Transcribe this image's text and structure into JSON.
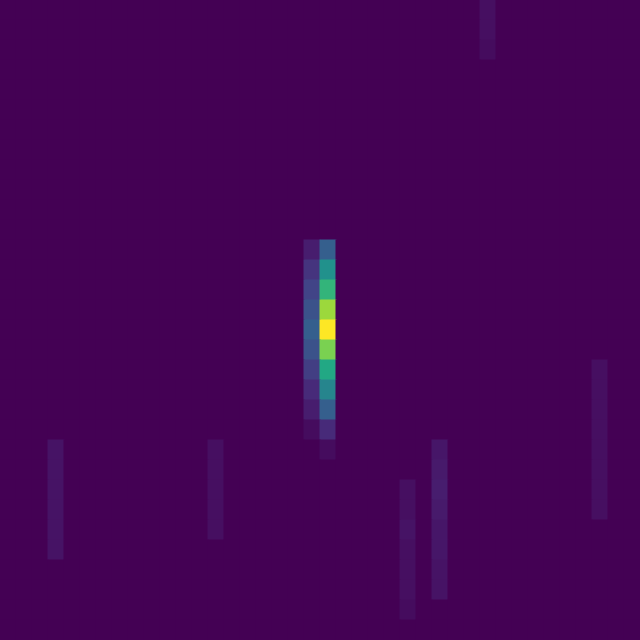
{
  "chart_data": {
    "type": "heatmap",
    "color": "viridis",
    "tick_labels": false,
    "zlim": [
      0,
      1
    ],
    "cells": [
      [
        0,
        0,
        0,
        0,
        0,
        0,
        0,
        0,
        0,
        0,
        0,
        0,
        0,
        0,
        0,
        0,
        0,
        0,
        0,
        0,
        0,
        0,
        0,
        0,
        0,
        0,
        0,
        0,
        0,
        0,
        0.04,
        0,
        0,
        0,
        0,
        0,
        0,
        0,
        0,
        0
      ],
      [
        0,
        0,
        0,
        0,
        0,
        0,
        0,
        0,
        0,
        0,
        0,
        0,
        0,
        0,
        0,
        0,
        0,
        0,
        0,
        0,
        0,
        0,
        0,
        0,
        0,
        0,
        0,
        0,
        0,
        0,
        0.04,
        0,
        0,
        0,
        0,
        0,
        0,
        0,
        0,
        0
      ],
      [
        0,
        0,
        0,
        0,
        0,
        0,
        0,
        0,
        0,
        0,
        0,
        0,
        0,
        0,
        0,
        0,
        0,
        0,
        0,
        0,
        0,
        0,
        0,
        0,
        0,
        0,
        0,
        0,
        0,
        0,
        0.03,
        0,
        0,
        0,
        0,
        0,
        0,
        0,
        0,
        0
      ],
      [
        0,
        0,
        0,
        0,
        0,
        0,
        0,
        0,
        0,
        0,
        0,
        0,
        0,
        0,
        0,
        0,
        0,
        0,
        0,
        0,
        0,
        0,
        0,
        0,
        0,
        0,
        0,
        0,
        0,
        0,
        0,
        0,
        0,
        0,
        0,
        0,
        0,
        0,
        0,
        0
      ],
      [
        0,
        0,
        0,
        0,
        0,
        0,
        0,
        0,
        0,
        0,
        0,
        0,
        0,
        0,
        0,
        0,
        0,
        0,
        0,
        0,
        0,
        0,
        0,
        0,
        0,
        0,
        0,
        0,
        0,
        0,
        0,
        0,
        0,
        0,
        0,
        0,
        0,
        0,
        0,
        0
      ],
      [
        0,
        0,
        0,
        0,
        0,
        0,
        0,
        0,
        0,
        0,
        0,
        0,
        0,
        0,
        0,
        0,
        0,
        0,
        0,
        0,
        0,
        0,
        0,
        0,
        0,
        0,
        0,
        0,
        0,
        0,
        0,
        0,
        0,
        0,
        0,
        0,
        0,
        0,
        0,
        0
      ],
      [
        0,
        0,
        0,
        0,
        0,
        0,
        0,
        0,
        0,
        0,
        0,
        0,
        0,
        0,
        0,
        0,
        0,
        0,
        0,
        0,
        0,
        0,
        0,
        0,
        0,
        0,
        0,
        0,
        0,
        0,
        0,
        0,
        0,
        0,
        0,
        0,
        0,
        0,
        0,
        0
      ],
      [
        0,
        0,
        0,
        0,
        0,
        0,
        0,
        0,
        0,
        0,
        0,
        0,
        0,
        0,
        0,
        0,
        0,
        0,
        0,
        0,
        0,
        0,
        0,
        0,
        0,
        0,
        0,
        0,
        0,
        0,
        0,
        0,
        0,
        0,
        0,
        0,
        0,
        0,
        0,
        0
      ],
      [
        0,
        0,
        0,
        0,
        0,
        0,
        0,
        0,
        0,
        0,
        0,
        0,
        0,
        0,
        0,
        0,
        0,
        0,
        0,
        0,
        0,
        0,
        0,
        0,
        0,
        0,
        0,
        0,
        0,
        0,
        0,
        0,
        0,
        0,
        0,
        0,
        0,
        0,
        0,
        0
      ],
      [
        0,
        0,
        0,
        0,
        0,
        0,
        0,
        0,
        0,
        0,
        0,
        0,
        0,
        0,
        0,
        0,
        0,
        0,
        0,
        0,
        0,
        0,
        0,
        0,
        0,
        0,
        0,
        0,
        0,
        0,
        0,
        0,
        0,
        0,
        0,
        0,
        0,
        0,
        0,
        0
      ],
      [
        0,
        0,
        0,
        0,
        0,
        0,
        0,
        0,
        0,
        0,
        0,
        0,
        0,
        0,
        0,
        0,
        0,
        0,
        0,
        0,
        0,
        0,
        0,
        0,
        0,
        0,
        0,
        0,
        0,
        0,
        0,
        0,
        0,
        0,
        0,
        0,
        0,
        0,
        0,
        0
      ],
      [
        0,
        0,
        0,
        0,
        0,
        0,
        0,
        0,
        0,
        0,
        0,
        0,
        0,
        0,
        0,
        0,
        0,
        0,
        0,
        0,
        0,
        0,
        0,
        0,
        0,
        0,
        0,
        0,
        0,
        0,
        0,
        0,
        0,
        0,
        0,
        0,
        0,
        0,
        0,
        0
      ],
      [
        0,
        0,
        0,
        0,
        0,
        0,
        0,
        0,
        0,
        0,
        0,
        0,
        0,
        0,
        0,
        0,
        0,
        0,
        0,
        0.08,
        0.3,
        0,
        0,
        0,
        0,
        0,
        0,
        0,
        0,
        0,
        0,
        0,
        0,
        0,
        0,
        0,
        0,
        0,
        0,
        0
      ],
      [
        0,
        0,
        0,
        0,
        0,
        0,
        0,
        0,
        0,
        0,
        0,
        0,
        0,
        0,
        0,
        0,
        0,
        0,
        0,
        0.15,
        0.5,
        0,
        0,
        0,
        0,
        0,
        0,
        0,
        0,
        0,
        0,
        0,
        0,
        0,
        0,
        0,
        0,
        0,
        0,
        0
      ],
      [
        0,
        0,
        0,
        0,
        0,
        0,
        0,
        0,
        0,
        0,
        0,
        0,
        0,
        0,
        0,
        0,
        0,
        0,
        0,
        0.2,
        0.65,
        0,
        0,
        0,
        0,
        0,
        0,
        0,
        0,
        0,
        0,
        0,
        0,
        0,
        0,
        0,
        0,
        0,
        0,
        0
      ],
      [
        0,
        0,
        0,
        0,
        0,
        0,
        0,
        0,
        0,
        0,
        0,
        0,
        0,
        0,
        0,
        0,
        0,
        0,
        0,
        0.25,
        0.85,
        0,
        0,
        0,
        0,
        0,
        0,
        0,
        0,
        0,
        0,
        0,
        0,
        0,
        0,
        0,
        0,
        0,
        0,
        0
      ],
      [
        0,
        0,
        0,
        0,
        0,
        0,
        0,
        0,
        0,
        0,
        0,
        0,
        0,
        0,
        0,
        0,
        0,
        0,
        0,
        0.3,
        1.0,
        0,
        0,
        0,
        0,
        0,
        0,
        0,
        0,
        0,
        0,
        0,
        0,
        0,
        0,
        0,
        0,
        0,
        0,
        0
      ],
      [
        0,
        0,
        0,
        0,
        0,
        0,
        0,
        0,
        0,
        0,
        0,
        0,
        0,
        0,
        0,
        0,
        0,
        0,
        0,
        0.25,
        0.8,
        0,
        0,
        0,
        0,
        0,
        0,
        0,
        0,
        0,
        0,
        0,
        0,
        0,
        0,
        0,
        0,
        0,
        0,
        0
      ],
      [
        0,
        0,
        0,
        0,
        0,
        0,
        0,
        0,
        0,
        0,
        0,
        0,
        0,
        0,
        0,
        0,
        0,
        0,
        0,
        0.18,
        0.6,
        0,
        0,
        0,
        0,
        0,
        0,
        0,
        0,
        0,
        0,
        0,
        0,
        0,
        0,
        0,
        0,
        0.04,
        0,
        0
      ],
      [
        0,
        0,
        0,
        0,
        0,
        0,
        0,
        0,
        0,
        0,
        0,
        0,
        0,
        0,
        0,
        0,
        0,
        0,
        0,
        0.12,
        0.45,
        0,
        0,
        0,
        0,
        0,
        0,
        0,
        0,
        0,
        0,
        0,
        0,
        0,
        0,
        0,
        0,
        0.04,
        0,
        0
      ],
      [
        0,
        0,
        0,
        0,
        0,
        0,
        0,
        0,
        0,
        0,
        0,
        0,
        0,
        0,
        0,
        0,
        0,
        0,
        0,
        0.08,
        0.3,
        0,
        0,
        0,
        0,
        0,
        0,
        0,
        0,
        0,
        0,
        0,
        0,
        0,
        0,
        0,
        0,
        0.04,
        0,
        0
      ],
      [
        0,
        0,
        0,
        0,
        0,
        0,
        0,
        0,
        0,
        0,
        0,
        0,
        0,
        0,
        0,
        0,
        0,
        0,
        0,
        0.03,
        0.12,
        0,
        0,
        0,
        0,
        0,
        0,
        0,
        0,
        0,
        0,
        0,
        0,
        0,
        0,
        0,
        0,
        0.04,
        0,
        0
      ],
      [
        0,
        0,
        0,
        0.05,
        0,
        0,
        0,
        0,
        0,
        0,
        0,
        0,
        0,
        0.04,
        0,
        0,
        0,
        0,
        0,
        0,
        0.03,
        0,
        0,
        0,
        0,
        0,
        0,
        0.06,
        0,
        0,
        0,
        0,
        0,
        0,
        0,
        0,
        0,
        0.04,
        0,
        0
      ],
      [
        0,
        0,
        0,
        0.05,
        0,
        0,
        0,
        0,
        0,
        0,
        0,
        0,
        0,
        0.04,
        0,
        0,
        0,
        0,
        0,
        0,
        0,
        0,
        0,
        0,
        0,
        0,
        0,
        0.07,
        0,
        0,
        0,
        0,
        0,
        0,
        0,
        0,
        0,
        0.04,
        0,
        0
      ],
      [
        0,
        0,
        0,
        0.05,
        0,
        0,
        0,
        0,
        0,
        0,
        0,
        0,
        0,
        0.04,
        0,
        0,
        0,
        0,
        0,
        0,
        0,
        0,
        0,
        0,
        0,
        0.04,
        0,
        0.08,
        0,
        0,
        0,
        0,
        0,
        0,
        0,
        0,
        0,
        0.04,
        0,
        0
      ],
      [
        0,
        0,
        0,
        0.05,
        0,
        0,
        0,
        0,
        0,
        0,
        0,
        0,
        0,
        0.04,
        0,
        0,
        0,
        0,
        0,
        0,
        0,
        0,
        0,
        0,
        0,
        0.04,
        0,
        0.07,
        0,
        0,
        0,
        0,
        0,
        0,
        0,
        0,
        0,
        0.04,
        0,
        0
      ],
      [
        0,
        0,
        0,
        0.05,
        0,
        0,
        0,
        0,
        0,
        0,
        0,
        0,
        0,
        0.04,
        0,
        0,
        0,
        0,
        0,
        0,
        0,
        0,
        0,
        0,
        0,
        0.05,
        0,
        0.06,
        0,
        0,
        0,
        0,
        0,
        0,
        0,
        0,
        0,
        0,
        0,
        0
      ],
      [
        0,
        0,
        0,
        0.05,
        0,
        0,
        0,
        0,
        0,
        0,
        0,
        0,
        0,
        0,
        0,
        0,
        0,
        0,
        0,
        0,
        0,
        0,
        0,
        0,
        0,
        0.04,
        0,
        0.06,
        0,
        0,
        0,
        0,
        0,
        0,
        0,
        0,
        0,
        0,
        0,
        0
      ],
      [
        0,
        0,
        0,
        0,
        0,
        0,
        0,
        0,
        0,
        0,
        0,
        0,
        0,
        0,
        0,
        0,
        0,
        0,
        0,
        0,
        0,
        0,
        0,
        0,
        0,
        0.04,
        0,
        0.05,
        0,
        0,
        0,
        0,
        0,
        0,
        0,
        0,
        0,
        0,
        0,
        0
      ],
      [
        0,
        0,
        0,
        0,
        0,
        0,
        0,
        0,
        0,
        0,
        0,
        0,
        0,
        0,
        0,
        0,
        0,
        0,
        0,
        0,
        0,
        0,
        0,
        0,
        0,
        0.04,
        0,
        0.05,
        0,
        0,
        0,
        0,
        0,
        0,
        0,
        0,
        0,
        0,
        0,
        0
      ],
      [
        0,
        0,
        0,
        0,
        0,
        0,
        0,
        0,
        0,
        0,
        0,
        0,
        0,
        0,
        0,
        0,
        0,
        0,
        0,
        0,
        0,
        0,
        0,
        0,
        0,
        0.03,
        0,
        0,
        0,
        0,
        0,
        0,
        0,
        0,
        0,
        0,
        0,
        0,
        0,
        0
      ],
      [
        0,
        0,
        0,
        0,
        0,
        0,
        0,
        0,
        0,
        0,
        0,
        0,
        0,
        0,
        0,
        0,
        0,
        0,
        0,
        0,
        0,
        0,
        0,
        0,
        0,
        0,
        0,
        0,
        0,
        0,
        0,
        0,
        0,
        0,
        0,
        0,
        0,
        0,
        0,
        0
      ]
    ]
  }
}
